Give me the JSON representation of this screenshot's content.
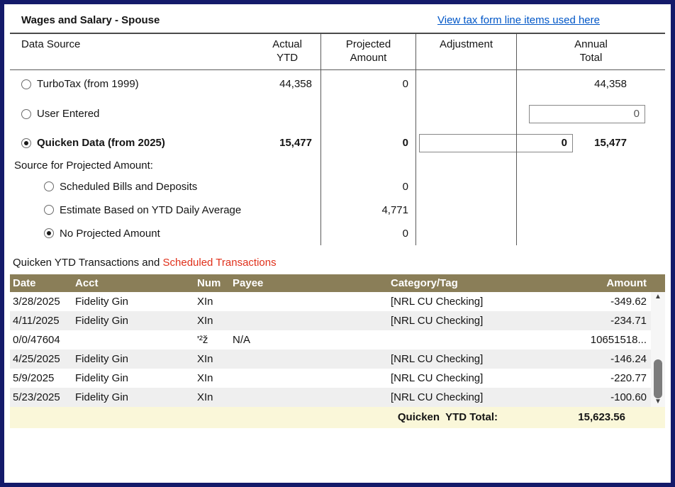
{
  "header": {
    "title": "Wages and Salary - Spouse",
    "link": "View tax form line items used here"
  },
  "columns": {
    "data_source": "Data Source",
    "actual_ytd": "Actual\nYTD",
    "projected_amount": "Projected\nAmount",
    "adjustment": "Adjustment",
    "annual_total": "Annual\nTotal"
  },
  "sources": {
    "turbotax": {
      "label": "TurboTax (from 1999)",
      "actual": "44,358",
      "projected": "0",
      "annual": "44,358",
      "selected": false
    },
    "user_entered": {
      "label": "User Entered",
      "annual_input": "0",
      "selected": false
    },
    "quicken": {
      "label": "Quicken Data (from 2025)",
      "actual": "15,477",
      "projected": "0",
      "adjustment_input": "0",
      "annual": "15,477",
      "selected": true
    }
  },
  "projected_section": {
    "label": "Source for Projected Amount:",
    "options": [
      {
        "label": "Scheduled Bills and Deposits",
        "value": "0",
        "selected": false
      },
      {
        "label": "Estimate Based on YTD Daily Average",
        "value": "4,771",
        "selected": false
      },
      {
        "label": "No Projected Amount",
        "value": "0",
        "selected": true
      }
    ]
  },
  "transactions": {
    "caption": "Quicken YTD Transactions and ",
    "caption_red": "Scheduled Transactions",
    "headers": [
      "Date",
      "Acct",
      "Num",
      "Payee",
      "Category/Tag",
      "Amount"
    ],
    "rows": [
      {
        "date": "3/28/2025",
        "acct": "Fidelity Gin",
        "num": "XIn",
        "payee": "",
        "category": "[NRL CU Checking]",
        "amount": "-349.62"
      },
      {
        "date": "4/11/2025",
        "acct": "Fidelity Gin",
        "num": "XIn",
        "payee": "",
        "category": "[NRL CU Checking]",
        "amount": "-234.71"
      },
      {
        "date": "0/0/47604",
        "acct": "",
        "num": "'²ž",
        "payee": "N/A",
        "category": "",
        "amount": "10651518..."
      },
      {
        "date": "4/25/2025",
        "acct": "Fidelity Gin",
        "num": "XIn",
        "payee": "",
        "category": "[NRL CU Checking]",
        "amount": "-146.24"
      },
      {
        "date": "5/9/2025",
        "acct": "Fidelity Gin",
        "num": "XIn",
        "payee": "",
        "category": "[NRL CU Checking]",
        "amount": "-220.77"
      },
      {
        "date": "5/23/2025",
        "acct": "Fidelity Gin",
        "num": "XIn",
        "payee": "",
        "category": "[NRL CU Checking]",
        "amount": "-100.60"
      }
    ]
  },
  "totals": {
    "label": "Quicken  YTD Total:",
    "value": "15,623.56"
  },
  "colors": {
    "frame_border": "#141a6a",
    "table_header": "#8a7e58",
    "total_row_bg": "#faf7d9",
    "link_blue": "#0056c7",
    "alert_red": "#e0301a"
  }
}
